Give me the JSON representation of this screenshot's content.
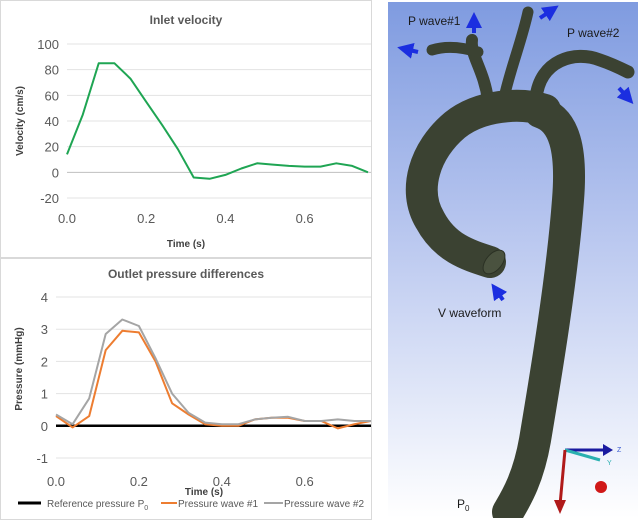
{
  "chart_data": [
    {
      "type": "line",
      "title": "Inlet velocity",
      "xlabel": "Time (s)",
      "ylabel": "Velocity (cm/s)",
      "xlim": [
        0,
        0.76
      ],
      "ylim": [
        -20,
        100
      ],
      "xticks": [
        "0.0",
        "0.2",
        "0.4",
        "0.6"
      ],
      "yticks": [
        "100",
        "80",
        "60",
        "40",
        "20",
        "0",
        "-20"
      ],
      "grid": true,
      "x": [
        0,
        0.04,
        0.08,
        0.12,
        0.16,
        0.2,
        0.24,
        0.28,
        0.32,
        0.36,
        0.4,
        0.44,
        0.48,
        0.52,
        0.56,
        0.6,
        0.64,
        0.68,
        0.72,
        0.76
      ],
      "series": [
        {
          "color": "#1fa553",
          "values": [
            14,
            45,
            85,
            85,
            73,
            55,
            37,
            18,
            -4,
            -5,
            -2,
            3,
            7,
            6,
            5,
            4.5,
            4.5,
            7,
            5,
            0
          ]
        }
      ]
    },
    {
      "type": "line",
      "title": "Outlet pressure differences",
      "xlabel": "Time (s)",
      "ylabel": "Pressure (mmHg)",
      "xlim": [
        0,
        0.76
      ],
      "ylim": [
        -1,
        4
      ],
      "xticks": [
        "0.0",
        "0.2",
        "0.4",
        "0.6"
      ],
      "yticks": [
        "4",
        "3",
        "2",
        "1",
        "0",
        "-1"
      ],
      "grid": true,
      "legend": "bottom",
      "x": [
        0,
        0.04,
        0.08,
        0.12,
        0.16,
        0.2,
        0.24,
        0.28,
        0.32,
        0.36,
        0.4,
        0.44,
        0.48,
        0.52,
        0.56,
        0.6,
        0.64,
        0.68,
        0.72,
        0.76
      ],
      "series": [
        {
          "name": "Reference pressure P",
          "name_subscript": "0",
          "color": "#000000",
          "values": [
            0,
            0,
            0,
            0,
            0,
            0,
            0,
            0,
            0,
            0,
            0,
            0,
            0,
            0,
            0,
            0,
            0,
            0,
            0,
            0
          ]
        },
        {
          "name": "Pressure wave #1",
          "color": "#ed7d31",
          "values": [
            0.3,
            -0.05,
            0.3,
            2.35,
            2.95,
            2.9,
            2.0,
            0.7,
            0.35,
            0.05,
            0,
            0,
            0.2,
            0.25,
            0.25,
            0.15,
            0.15,
            -0.08,
            0.05,
            0.15
          ]
        },
        {
          "name": "Pressure wave #2",
          "color": "#a5a5a5",
          "values": [
            0.35,
            0.05,
            0.85,
            2.85,
            3.3,
            3.1,
            2.1,
            1.0,
            0.4,
            0.1,
            0.05,
            0.05,
            0.2,
            0.25,
            0.28,
            0.15,
            0.15,
            0.2,
            0.15,
            0.15
          ]
        }
      ]
    }
  ],
  "model": {
    "labels": {
      "p_wave_1": "P wave#1",
      "p_wave_2": "P wave#2",
      "v_waveform": "V waveform",
      "p0": "P",
      "p0_sub": "0"
    },
    "axes": {
      "z": "Z",
      "y": "Y"
    },
    "arrow_color": "#1b2ee0",
    "vessel_color": "#3b4232"
  }
}
